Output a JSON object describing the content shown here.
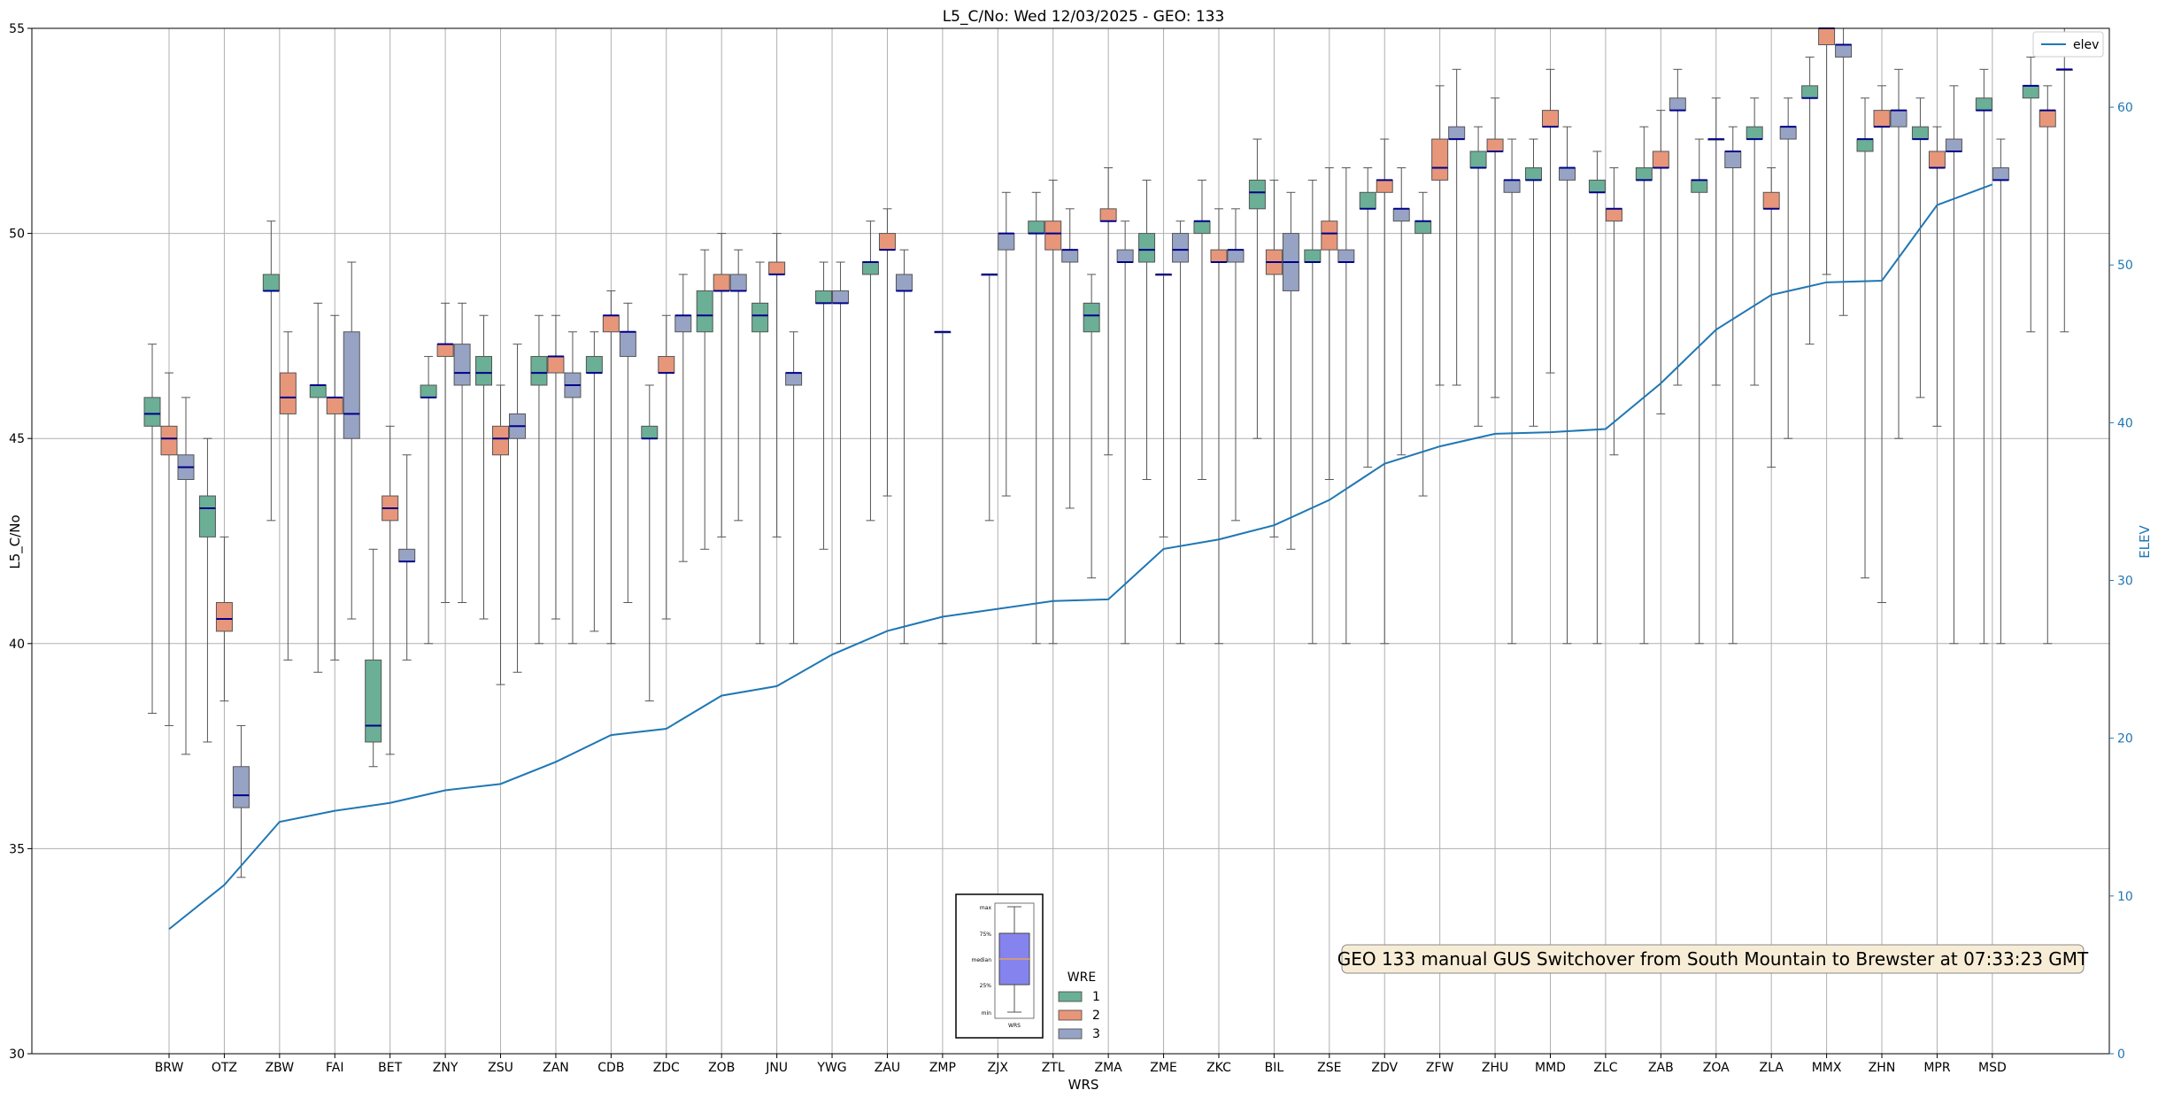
{
  "chart_data": {
    "type": "boxplot",
    "title": "L5_C/No: Wed 12/03/2025 - GEO: 133",
    "xlabel": "WRS",
    "ylabel": "L5_C/No",
    "y2label": "ELEV",
    "ylim": [
      30,
      55
    ],
    "y2lim": [
      0,
      65
    ],
    "yticks": [
      30,
      35,
      40,
      45,
      50,
      55
    ],
    "y2ticks": [
      0,
      10,
      20,
      30,
      40,
      50,
      60
    ],
    "grid": true,
    "categories": [
      "BRW",
      "OTZ",
      "ZBW",
      "FAI",
      "BET",
      "ZNY",
      "ZSU",
      "ZAN",
      "CDB",
      "ZDC",
      "ZOB",
      "JNU",
      "YWG",
      "ZAU",
      "ZMP",
      "ZJX",
      "ZTL",
      "ZMA",
      "ZME",
      "ZKC",
      "BIL",
      "ZSE",
      "ZDV",
      "ZFW",
      "ZHU",
      "MMD",
      "ZLC",
      "ZAB",
      "ZOA",
      "ZLA",
      "MMX",
      "ZHN",
      "MPR",
      "MSD"
    ],
    "legend_title": "WRE",
    "colors": {
      "1": "#6aaf96",
      "2": "#e8967a",
      "3": "#97a3c4",
      "median": "#00008b",
      "elev": "#1f77b4",
      "whisker": "#555555"
    },
    "boxes": [
      {
        "wre": "1",
        "values": [
          38.3,
          45.3,
          45.6,
          46.0,
          47.3
        ]
      },
      {
        "wre": "2",
        "values": [
          38.0,
          44.6,
          45.0,
          45.3,
          46.6
        ]
      },
      {
        "wre": "3",
        "values": [
          37.3,
          44.0,
          44.3,
          44.6,
          46.0
        ]
      },
      {
        "wre": "1",
        "values": [
          37.6,
          42.6,
          43.3,
          43.6,
          45.0
        ]
      },
      {
        "wre": "2",
        "values": [
          38.6,
          40.3,
          40.6,
          41.0,
          42.6
        ]
      },
      {
        "wre": "3",
        "values": [
          34.3,
          36.0,
          36.3,
          37.0,
          38.0
        ]
      },
      {
        "wre": "1",
        "values": [
          43.0,
          48.6,
          48.6,
          49.0,
          50.3
        ]
      },
      {
        "wre": "2",
        "values": [
          39.6,
          45.6,
          46.0,
          46.6,
          47.6
        ]
      },
      {
        "wre": "1",
        "values": [
          39.3,
          46.0,
          46.3,
          46.3,
          48.3
        ]
      },
      {
        "wre": "2",
        "values": [
          39.6,
          45.6,
          46.0,
          46.0,
          48.0
        ]
      },
      {
        "wre": "3",
        "values": [
          40.6,
          45.0,
          45.6,
          47.6,
          49.3
        ]
      },
      {
        "wre": "1",
        "values": [
          37.0,
          37.6,
          38.0,
          39.6,
          42.3
        ]
      },
      {
        "wre": "2",
        "values": [
          37.3,
          43.0,
          43.3,
          43.6,
          45.3
        ]
      },
      {
        "wre": "3",
        "values": [
          39.6,
          42.0,
          42.0,
          42.3,
          44.6
        ]
      },
      {
        "wre": "1",
        "values": [
          40.0,
          46.0,
          46.0,
          46.3,
          47.0
        ]
      },
      {
        "wre": "2",
        "values": [
          41.0,
          47.0,
          47.3,
          47.3,
          48.3
        ]
      },
      {
        "wre": "3",
        "values": [
          41.0,
          46.3,
          46.6,
          47.3,
          48.3
        ]
      },
      {
        "wre": "1",
        "values": [
          40.6,
          46.3,
          46.6,
          47.0,
          48.0
        ]
      },
      {
        "wre": "2",
        "values": [
          39.0,
          44.6,
          45.0,
          45.3,
          46.3
        ]
      },
      {
        "wre": "3",
        "values": [
          39.3,
          45.0,
          45.3,
          45.6,
          47.3
        ]
      },
      {
        "wre": "1",
        "values": [
          40.0,
          46.3,
          46.6,
          47.0,
          48.0
        ]
      },
      {
        "wre": "2",
        "values": [
          40.6,
          46.6,
          47.0,
          47.0,
          48.0
        ]
      },
      {
        "wre": "3",
        "values": [
          40.0,
          46.0,
          46.3,
          46.6,
          47.6
        ]
      },
      {
        "wre": "1",
        "values": [
          40.3,
          46.6,
          46.6,
          47.0,
          47.6
        ]
      },
      {
        "wre": "2",
        "values": [
          40.0,
          47.6,
          48.0,
          48.0,
          48.6
        ]
      },
      {
        "wre": "3",
        "values": [
          41.0,
          47.0,
          47.6,
          47.6,
          48.3
        ]
      },
      {
        "wre": "1",
        "values": [
          38.6,
          45.0,
          45.0,
          45.3,
          46.3
        ]
      },
      {
        "wre": "2",
        "values": [
          40.6,
          46.6,
          46.6,
          47.0,
          48.0
        ]
      },
      {
        "wre": "3",
        "values": [
          42.0,
          47.6,
          48.0,
          48.0,
          49.0
        ]
      },
      {
        "wre": "1",
        "values": [
          42.3,
          47.6,
          48.0,
          48.6,
          49.6
        ]
      },
      {
        "wre": "2",
        "values": [
          42.6,
          48.6,
          48.6,
          49.0,
          50.0
        ]
      },
      {
        "wre": "3",
        "values": [
          43.0,
          48.6,
          48.6,
          49.0,
          49.6
        ]
      },
      {
        "wre": "1",
        "values": [
          40.0,
          47.6,
          48.0,
          48.3,
          49.3
        ]
      },
      {
        "wre": "2",
        "values": [
          42.6,
          49.0,
          49.0,
          49.3,
          50.0
        ]
      },
      {
        "wre": "3",
        "values": [
          40.0,
          46.3,
          46.6,
          46.6,
          47.6
        ]
      },
      {
        "wre": "1",
        "values": [
          42.3,
          48.3,
          48.3,
          48.6,
          49.3
        ]
      },
      {
        "wre": "3",
        "values": [
          40.0,
          48.3,
          48.3,
          48.6,
          49.3
        ]
      },
      {
        "wre": "1",
        "values": [
          43.0,
          49.0,
          49.3,
          49.3,
          50.3
        ]
      },
      {
        "wre": "2",
        "values": [
          43.6,
          49.6,
          49.6,
          50.0,
          50.6
        ]
      },
      {
        "wre": "3",
        "values": [
          40.0,
          48.6,
          48.6,
          49.0,
          49.6
        ]
      },
      {
        "wre": "2",
        "values": [
          40.0,
          47.6,
          47.6,
          47.6,
          47.6
        ]
      },
      {
        "wre": "1",
        "values": [
          43.0,
          49.0,
          49.0,
          49.0,
          49.0
        ]
      },
      {
        "wre": "3",
        "values": [
          43.6,
          49.6,
          50.0,
          50.0,
          51.0
        ]
      },
      {
        "wre": "1",
        "values": [
          40.0,
          50.0,
          50.0,
          50.3,
          51.0
        ]
      },
      {
        "wre": "2",
        "values": [
          40.0,
          49.6,
          50.0,
          50.3,
          51.3
        ]
      },
      {
        "wre": "3",
        "values": [
          43.3,
          49.3,
          49.6,
          49.6,
          50.6
        ]
      },
      {
        "wre": "1",
        "values": [
          41.6,
          47.6,
          48.0,
          48.3,
          49.0
        ]
      },
      {
        "wre": "2",
        "values": [
          44.6,
          50.3,
          50.3,
          50.6,
          51.6
        ]
      },
      {
        "wre": "3",
        "values": [
          40.0,
          49.3,
          49.3,
          49.6,
          50.3
        ]
      },
      {
        "wre": "1",
        "values": [
          44.0,
          49.3,
          49.6,
          50.0,
          51.3
        ]
      },
      {
        "wre": "2",
        "values": [
          42.6,
          49.0,
          49.0,
          49.0,
          49.0
        ]
      },
      {
        "wre": "3",
        "values": [
          40.0,
          49.3,
          49.6,
          50.0,
          50.3
        ]
      },
      {
        "wre": "1",
        "values": [
          44.0,
          50.0,
          50.3,
          50.3,
          51.3
        ]
      },
      {
        "wre": "2",
        "values": [
          40.0,
          49.3,
          49.3,
          49.6,
          50.6
        ]
      },
      {
        "wre": "3",
        "values": [
          43.0,
          49.3,
          49.6,
          49.6,
          50.6
        ]
      },
      {
        "wre": "1",
        "values": [
          45.0,
          50.6,
          51.0,
          51.3,
          52.3
        ]
      },
      {
        "wre": "2",
        "values": [
          42.6,
          49.0,
          49.3,
          49.6,
          51.3
        ]
      },
      {
        "wre": "3",
        "values": [
          42.3,
          48.6,
          49.3,
          50.0,
          51.0
        ]
      },
      {
        "wre": "1",
        "values": [
          40.0,
          49.3,
          49.3,
          49.6,
          51.3
        ]
      },
      {
        "wre": "2",
        "values": [
          44.0,
          49.6,
          50.0,
          50.3,
          51.6
        ]
      },
      {
        "wre": "3",
        "values": [
          40.0,
          49.3,
          49.3,
          49.6,
          51.6
        ]
      },
      {
        "wre": "1",
        "values": [
          44.3,
          50.6,
          50.6,
          51.0,
          51.6
        ]
      },
      {
        "wre": "2",
        "values": [
          40.0,
          51.0,
          51.3,
          51.3,
          52.3
        ]
      },
      {
        "wre": "3",
        "values": [
          44.6,
          50.3,
          50.6,
          50.6,
          51.6
        ]
      },
      {
        "wre": "1",
        "values": [
          43.6,
          50.0,
          50.3,
          50.3,
          51.0
        ]
      },
      {
        "wre": "2",
        "values": [
          46.3,
          51.3,
          51.6,
          52.3,
          53.6
        ]
      },
      {
        "wre": "3",
        "values": [
          46.3,
          52.3,
          52.3,
          52.6,
          54.0
        ]
      },
      {
        "wre": "1",
        "values": [
          45.3,
          51.6,
          51.6,
          52.0,
          52.6
        ]
      },
      {
        "wre": "2",
        "values": [
          46.0,
          52.0,
          52.0,
          52.3,
          53.3
        ]
      },
      {
        "wre": "3",
        "values": [
          40.0,
          51.0,
          51.3,
          51.3,
          52.3
        ]
      },
      {
        "wre": "1",
        "values": [
          45.3,
          51.3,
          51.3,
          51.6,
          52.3
        ]
      },
      {
        "wre": "2",
        "values": [
          46.6,
          52.6,
          52.6,
          53.0,
          54.0
        ]
      },
      {
        "wre": "3",
        "values": [
          40.0,
          51.3,
          51.6,
          51.6,
          52.6
        ]
      },
      {
        "wre": "1",
        "values": [
          40.0,
          51.0,
          51.0,
          51.3,
          52.0
        ]
      },
      {
        "wre": "2",
        "values": [
          44.6,
          50.3,
          50.6,
          50.6,
          51.6
        ]
      },
      {
        "wre": "1",
        "values": [
          40.0,
          51.3,
          51.3,
          51.6,
          52.6
        ]
      },
      {
        "wre": "2",
        "values": [
          45.6,
          51.6,
          51.6,
          52.0,
          53.0
        ]
      },
      {
        "wre": "3",
        "values": [
          46.3,
          53.0,
          53.0,
          53.3,
          54.0
        ]
      },
      {
        "wre": "1",
        "values": [
          40.0,
          51.0,
          51.3,
          51.3,
          52.3
        ]
      },
      {
        "wre": "2",
        "values": [
          46.3,
          52.3,
          52.3,
          52.3,
          53.3
        ]
      },
      {
        "wre": "3",
        "values": [
          40.0,
          51.6,
          52.0,
          52.0,
          52.6
        ]
      },
      {
        "wre": "1",
        "values": [
          46.3,
          52.3,
          52.3,
          52.6,
          53.3
        ]
      },
      {
        "wre": "2",
        "values": [
          44.3,
          50.6,
          50.6,
          51.0,
          51.6
        ]
      },
      {
        "wre": "3",
        "values": [
          45.0,
          52.3,
          52.6,
          52.6,
          53.3
        ]
      },
      {
        "wre": "1",
        "values": [
          47.3,
          53.3,
          53.3,
          53.6,
          54.3
        ]
      },
      {
        "wre": "2",
        "values": [
          49.0,
          54.6,
          55.0,
          55.0,
          55.0
        ]
      },
      {
        "wre": "3",
        "values": [
          48.0,
          54.3,
          54.6,
          54.6,
          55.0
        ]
      },
      {
        "wre": "1",
        "values": [
          41.6,
          52.0,
          52.3,
          52.3,
          53.3
        ]
      },
      {
        "wre": "2",
        "values": [
          41.0,
          52.6,
          52.6,
          53.0,
          53.6
        ]
      },
      {
        "wre": "3",
        "values": [
          45.0,
          52.6,
          53.0,
          53.0,
          54.0
        ]
      },
      {
        "wre": "1",
        "values": [
          46.0,
          52.3,
          52.3,
          52.6,
          53.3
        ]
      },
      {
        "wre": "2",
        "values": [
          45.3,
          51.6,
          51.6,
          52.0,
          52.6
        ]
      },
      {
        "wre": "3",
        "values": [
          40.0,
          52.0,
          52.0,
          52.3,
          53.6
        ]
      },
      {
        "wre": "1",
        "values": [
          40.0,
          53.0,
          53.0,
          53.3,
          54.0
        ]
      },
      {
        "wre": "3",
        "values": [
          40.0,
          51.3,
          51.3,
          51.6,
          52.3
        ]
      },
      {
        "wre": "1",
        "values": [
          47.6,
          53.3,
          53.6,
          53.6,
          54.3
        ]
      },
      {
        "wre": "2",
        "values": [
          40.0,
          52.6,
          53.0,
          53.0,
          53.6
        ]
      },
      {
        "wre": "3",
        "values": [
          47.6,
          54.0,
          54.0,
          54.0,
          55.0
        ]
      }
    ],
    "elev": {
      "name": "elev",
      "values": [
        7.9,
        10.7,
        14.7,
        15.4,
        15.9,
        16.7,
        17.1,
        18.5,
        20.2,
        20.6,
        22.7,
        23.3,
        25.3,
        26.8,
        27.7,
        28.2,
        28.7,
        28.8,
        32.0,
        32.6,
        33.5,
        35.1,
        37.4,
        38.5,
        39.3,
        39.4,
        39.6,
        42.5,
        45.9,
        48.1,
        48.9,
        49.0,
        53.8,
        55.1
      ]
    },
    "annotation": "GEO 133 manual GUS Switchover from South Mountain to Brewster at 07:33:23 GMT",
    "inset_key": {
      "labels": [
        "max",
        "75%",
        "median",
        "25%",
        "min"
      ],
      "caption": "WRS"
    }
  }
}
